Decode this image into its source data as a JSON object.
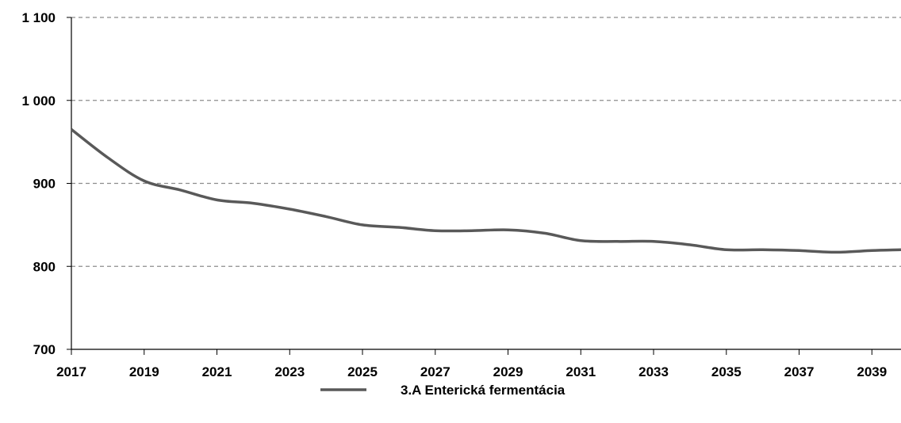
{
  "chart_data": {
    "type": "line",
    "title": "",
    "xlabel": "",
    "ylabel": "",
    "x": [
      2017,
      2018,
      2019,
      2020,
      2021,
      2022,
      2023,
      2024,
      2025,
      2026,
      2027,
      2028,
      2029,
      2030,
      2031,
      2032,
      2033,
      2034,
      2035,
      2036,
      2037,
      2038,
      2039,
      2039.8
    ],
    "series": [
      {
        "name": "3.A Enterická fermentácia",
        "color": "#595959",
        "values": [
          965,
          931,
          903,
          892,
          880,
          876,
          869,
          860,
          850,
          847,
          843,
          843,
          844,
          840,
          831,
          830,
          830,
          826,
          820,
          820,
          819,
          817,
          819,
          820
        ]
      }
    ],
    "xlim": [
      2017,
      2039.8
    ],
    "ylim": [
      700,
      1100
    ],
    "x_ticks": [
      "2017",
      "2019",
      "2021",
      "2023",
      "2025",
      "2027",
      "2029",
      "2031",
      "2033",
      "2035",
      "2037",
      "2039"
    ],
    "y_ticks": [
      "700",
      "800",
      "900",
      "1 000",
      "1 100"
    ],
    "grid": "horizontal-dashed",
    "legend_position": "bottom-center"
  }
}
